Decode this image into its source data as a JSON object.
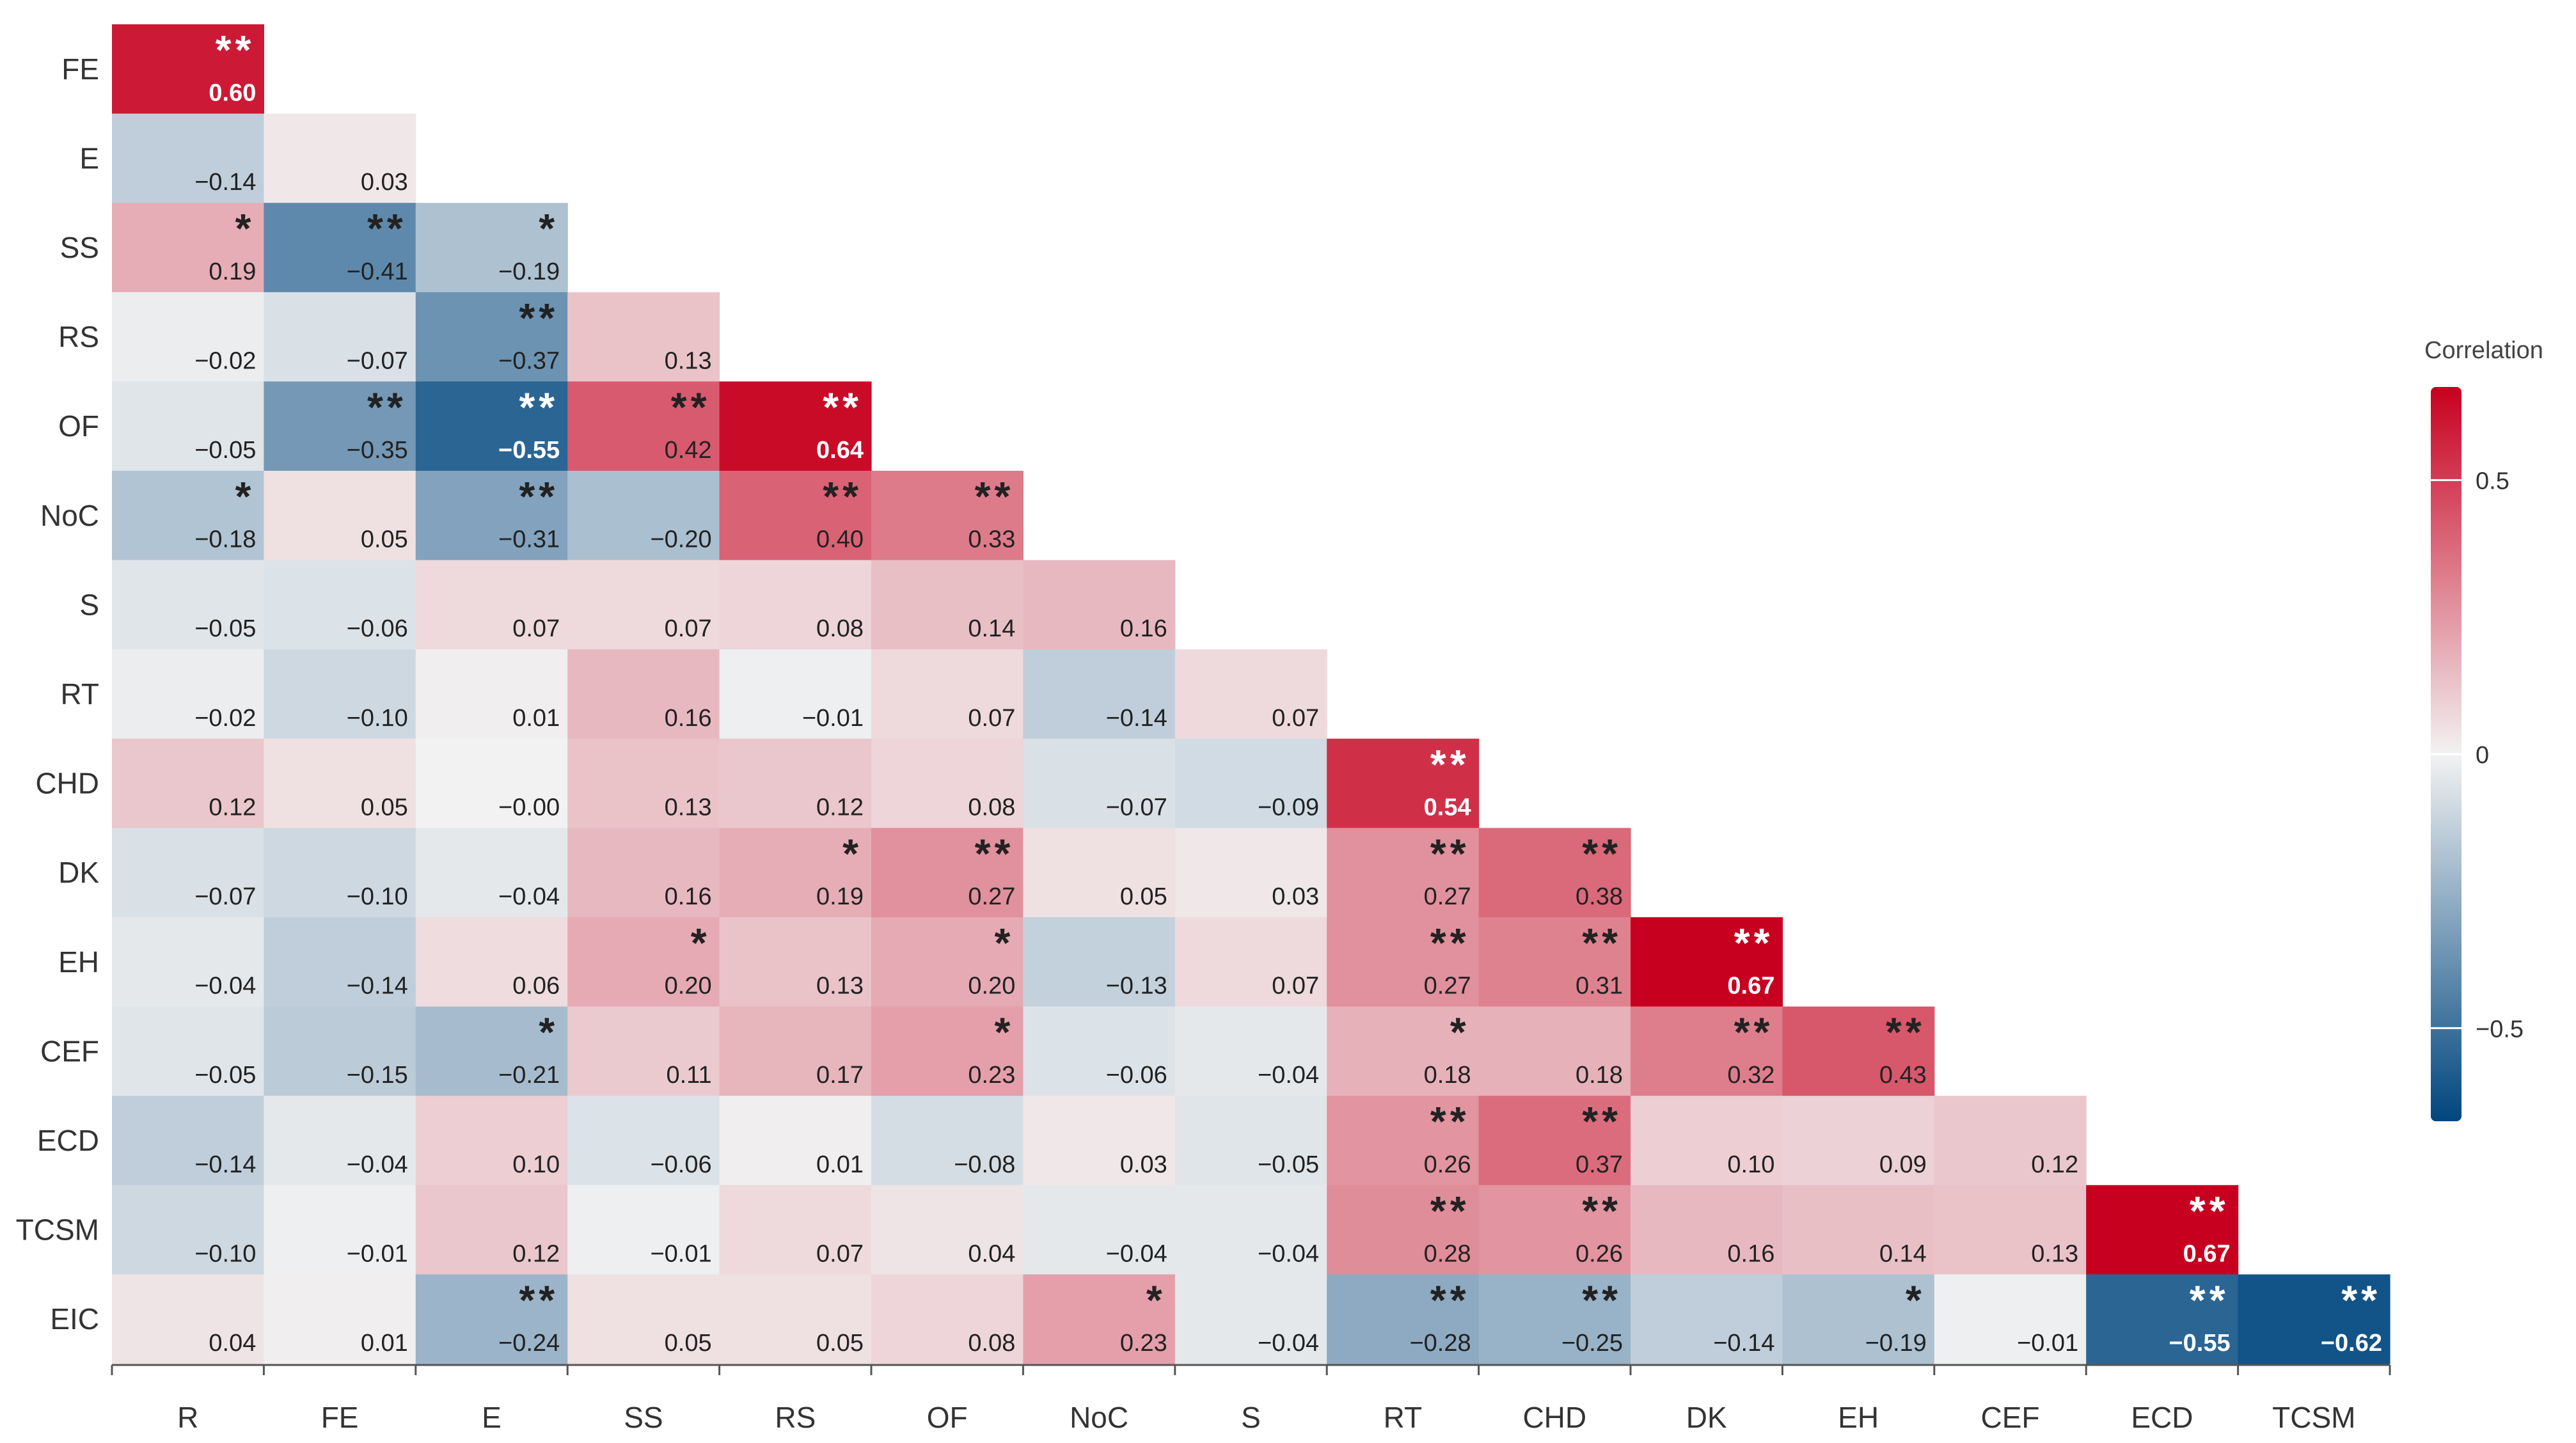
{
  "chart_data": {
    "type": "heatmap",
    "title": "",
    "legend_title": "Correlation",
    "legend_ticks": [
      0.5,
      0,
      -0.5
    ],
    "legend_tick_labels": [
      "0.5",
      "0",
      "−0.5"
    ],
    "color_range": [
      -0.67,
      0.67
    ],
    "colors": {
      "negative": "#00467f",
      "zero": "#f2f2f2",
      "positive": "#c8001f"
    },
    "rows": [
      "FE",
      "E",
      "SS",
      "RS",
      "OF",
      "NoC",
      "S",
      "RT",
      "CHD",
      "DK",
      "EH",
      "CEF",
      "ECD",
      "TCSM",
      "EIC"
    ],
    "columns": [
      "R",
      "FE",
      "E",
      "SS",
      "RS",
      "OF",
      "NoC",
      "S",
      "RT",
      "CHD",
      "DK",
      "EH",
      "CEF",
      "ECD",
      "TCSM"
    ],
    "values": [
      [
        0.6
      ],
      [
        -0.14,
        0.03
      ],
      [
        0.19,
        -0.41,
        -0.19
      ],
      [
        -0.02,
        -0.07,
        -0.37,
        0.13
      ],
      [
        -0.05,
        -0.35,
        -0.55,
        0.42,
        0.64
      ],
      [
        -0.18,
        0.05,
        -0.31,
        -0.2,
        0.4,
        0.33
      ],
      [
        -0.05,
        -0.06,
        0.07,
        0.07,
        0.08,
        0.14,
        0.16
      ],
      [
        -0.02,
        -0.1,
        0.01,
        0.16,
        -0.01,
        0.07,
        -0.14,
        0.07
      ],
      [
        0.12,
        0.05,
        -0.0,
        0.13,
        0.12,
        0.08,
        -0.07,
        -0.09,
        0.54
      ],
      [
        -0.07,
        -0.1,
        -0.04,
        0.16,
        0.19,
        0.27,
        0.05,
        0.03,
        0.27,
        0.38
      ],
      [
        -0.04,
        -0.14,
        0.06,
        0.2,
        0.13,
        0.2,
        -0.13,
        0.07,
        0.27,
        0.31,
        0.67
      ],
      [
        -0.05,
        -0.15,
        -0.21,
        0.11,
        0.17,
        0.23,
        -0.06,
        -0.04,
        0.18,
        0.18,
        0.32,
        0.43
      ],
      [
        -0.14,
        -0.04,
        0.1,
        -0.06,
        0.01,
        -0.08,
        0.03,
        -0.05,
        0.26,
        0.37,
        0.1,
        0.09,
        0.12
      ],
      [
        -0.1,
        -0.01,
        0.12,
        -0.01,
        0.07,
        0.04,
        -0.04,
        -0.04,
        0.28,
        0.26,
        0.16,
        0.14,
        0.13,
        0.67
      ],
      [
        0.04,
        0.01,
        -0.24,
        0.05,
        0.05,
        0.08,
        0.23,
        -0.04,
        -0.28,
        -0.25,
        -0.14,
        -0.19,
        -0.01,
        -0.55,
        -0.62
      ]
    ],
    "value_labels": [
      [
        "0.60"
      ],
      [
        "−0.14",
        "0.03"
      ],
      [
        "0.19",
        "−0.41",
        "−0.19"
      ],
      [
        "−0.02",
        "−0.07",
        "−0.37",
        "0.13"
      ],
      [
        "−0.05",
        "−0.35",
        "−0.55",
        "0.42",
        "0.64"
      ],
      [
        "−0.18",
        "0.05",
        "−0.31",
        "−0.20",
        "0.40",
        "0.33"
      ],
      [
        "−0.05",
        "−0.06",
        "0.07",
        "0.07",
        "0.08",
        "0.14",
        "0.16"
      ],
      [
        "−0.02",
        "−0.10",
        "0.01",
        "0.16",
        "−0.01",
        "0.07",
        "−0.14",
        "0.07"
      ],
      [
        "0.12",
        "0.05",
        "−0.00",
        "0.13",
        "0.12",
        "0.08",
        "−0.07",
        "−0.09",
        "0.54"
      ],
      [
        "−0.07",
        "−0.10",
        "−0.04",
        "0.16",
        "0.19",
        "0.27",
        "0.05",
        "0.03",
        "0.27",
        "0.38"
      ],
      [
        "−0.04",
        "−0.14",
        "0.06",
        "0.20",
        "0.13",
        "0.20",
        "−0.13",
        "0.07",
        "0.27",
        "0.31",
        "0.67"
      ],
      [
        "−0.05",
        "−0.15",
        "−0.21",
        "0.11",
        "0.17",
        "0.23",
        "−0.06",
        "−0.04",
        "0.18",
        "0.18",
        "0.32",
        "0.43"
      ],
      [
        "−0.14",
        "−0.04",
        "0.10",
        "−0.06",
        "0.01",
        "−0.08",
        "0.03",
        "−0.05",
        "0.26",
        "0.37",
        "0.10",
        "0.09",
        "0.12"
      ],
      [
        "−0.10",
        "−0.01",
        "0.12",
        "−0.01",
        "0.07",
        "0.04",
        "−0.04",
        "−0.04",
        "0.28",
        "0.26",
        "0.16",
        "0.14",
        "0.13",
        "0.67"
      ],
      [
        "0.04",
        "0.01",
        "−0.24",
        "0.05",
        "0.05",
        "0.08",
        "0.23",
        "−0.04",
        "−0.28",
        "−0.25",
        "−0.14",
        "−0.19",
        "−0.01",
        "−0.55",
        "−0.62"
      ]
    ],
    "significance": [
      [
        "**"
      ],
      [
        "",
        ""
      ],
      [
        "*",
        "**",
        "*"
      ],
      [
        "",
        "",
        "**",
        ""
      ],
      [
        "",
        "**",
        "**",
        "**",
        "**"
      ],
      [
        "*",
        "",
        "**",
        "",
        "**",
        "**"
      ],
      [
        "",
        "",
        "",
        "",
        "",
        "",
        ""
      ],
      [
        "",
        "",
        "",
        "",
        "",
        "",
        "",
        ""
      ],
      [
        "",
        "",
        "",
        "",
        "",
        "",
        "",
        "",
        "**"
      ],
      [
        "",
        "",
        "",
        "",
        "*",
        "**",
        "",
        "",
        "**",
        "**"
      ],
      [
        "",
        "",
        "",
        "*",
        "",
        "*",
        "",
        "",
        "**",
        "**",
        "**"
      ],
      [
        "",
        "",
        "*",
        "",
        "",
        "*",
        "",
        "",
        "*",
        "",
        "**",
        "**"
      ],
      [
        "",
        "",
        "",
        "",
        "",
        "",
        "",
        "",
        "**",
        "**",
        "",
        "",
        ""
      ],
      [
        "",
        "",
        "",
        "",
        "",
        "",
        "",
        "",
        "**",
        "**",
        "",
        "",
        "",
        "**"
      ],
      [
        "",
        "",
        "**",
        "",
        "",
        "",
        "*",
        "",
        "**",
        "**",
        "",
        "*",
        "",
        "**",
        "**"
      ]
    ]
  }
}
